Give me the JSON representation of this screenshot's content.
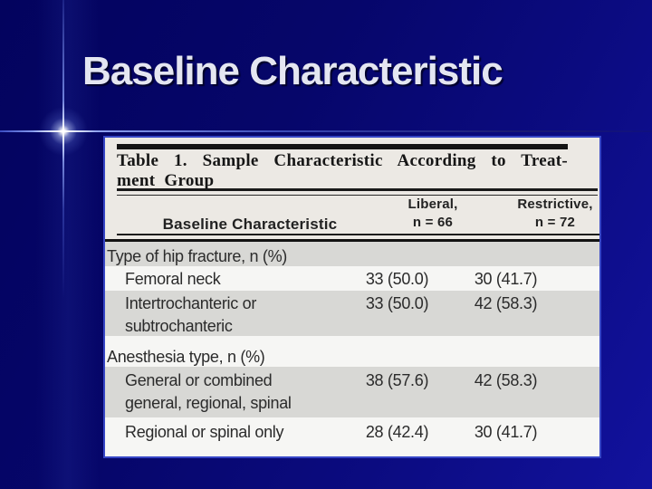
{
  "slide": {
    "title": "Baseline Characteristic"
  },
  "table_image": {
    "caption_line1": "Table 1. Sample Characteristic According to Treat-",
    "caption_line2": "ment Group",
    "header": {
      "col1": "Baseline Characteristic",
      "col2_line1": "Liberal,",
      "col2_line2": "n = 66",
      "col3_line1": "Restrictive,",
      "col3_line2": "n = 72"
    },
    "rows": [
      {
        "lines": [
          "Type of hip fracture, n (%)"
        ],
        "indent": false,
        "liberal": "",
        "restrictive": "",
        "shade": "gray"
      },
      {
        "lines": [
          "Femoral neck"
        ],
        "indent": true,
        "liberal": "33 (50.0)",
        "restrictive": "30 (41.7)",
        "shade": "white"
      },
      {
        "lines": [
          "Intertrochanteric or",
          "subtrochanteric"
        ],
        "indent": true,
        "liberal": "33 (50.0)",
        "restrictive": "42 (58.3)",
        "shade": "gray"
      },
      {
        "lines": [
          "Anesthesia type, n (%)"
        ],
        "indent": false,
        "liberal": "",
        "restrictive": "",
        "shade": "white"
      },
      {
        "lines": [
          "General or combined",
          "general, regional, spinal"
        ],
        "indent": true,
        "liberal": "38 (57.6)",
        "restrictive": "42 (58.3)",
        "shade": "gray"
      },
      {
        "lines": [
          "Regional or spinal only"
        ],
        "indent": true,
        "liberal": "28 (42.4)",
        "restrictive": "30 (41.7)",
        "shade": "white"
      }
    ]
  },
  "colors": {
    "background_top": "#03035e",
    "background_bottom": "#12129e",
    "title_text": "#e4e6f1",
    "flare_line": "#eef3ff",
    "figure_border": "#3646c6",
    "scan_paper": "#ece9e4",
    "band_gray": "#d8d8d5",
    "band_white": "#f6f6f4",
    "rule_black": "#141414"
  }
}
